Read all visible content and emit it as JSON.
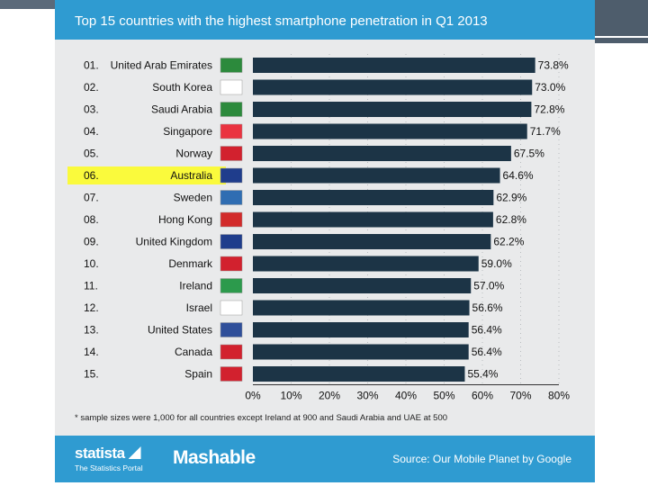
{
  "chart_data": {
    "type": "bar",
    "orientation": "horizontal",
    "title": "Top 15 countries with the highest smartphone penetration in Q1 2013",
    "ranks": [
      "01.",
      "02.",
      "03.",
      "04.",
      "05.",
      "06.",
      "07.",
      "08.",
      "09.",
      "10.",
      "11.",
      "12.",
      "13.",
      "14.",
      "15."
    ],
    "categories": [
      "United Arab Emirates",
      "South Korea",
      "Saudi Arabia",
      "Singapore",
      "Norway",
      "Australia",
      "Sweden",
      "Hong Kong",
      "United Kingdom",
      "Denmark",
      "Ireland",
      "Israel",
      "United States",
      "Canada",
      "Spain"
    ],
    "values": [
      73.8,
      73.0,
      72.8,
      71.7,
      67.5,
      64.6,
      62.9,
      62.8,
      62.2,
      59.0,
      57.0,
      56.6,
      56.4,
      56.4,
      55.4
    ],
    "value_labels": [
      "73.8%",
      "73.0%",
      "72.8%",
      "71.7%",
      "67.5%",
      "64.6%",
      "62.9%",
      "62.8%",
      "62.2%",
      "59.0%",
      "57.0%",
      "56.6%",
      "56.4%",
      "56.4%",
      "55.4%"
    ],
    "xlim": [
      0,
      80
    ],
    "x_ticks": [
      "0%",
      "10%",
      "20%",
      "30%",
      "40%",
      "50%",
      "60%",
      "70%",
      "80%"
    ],
    "highlighted": "Australia",
    "bar_color": "#1c3446",
    "highlight_color": "#fafa3c",
    "footnote": "* sample sizes were 1,000 for all countries except Ireland at 900 and Saudi Arabia and UAE at 500"
  },
  "footer": {
    "brand": "statista",
    "brand_tagline": "The Statistics Portal",
    "partner": "Mashable",
    "source": "Source: Our Mobile Planet by Google"
  },
  "colors": {
    "panel": "#e9eaeb",
    "header": "#2f9bd1"
  }
}
